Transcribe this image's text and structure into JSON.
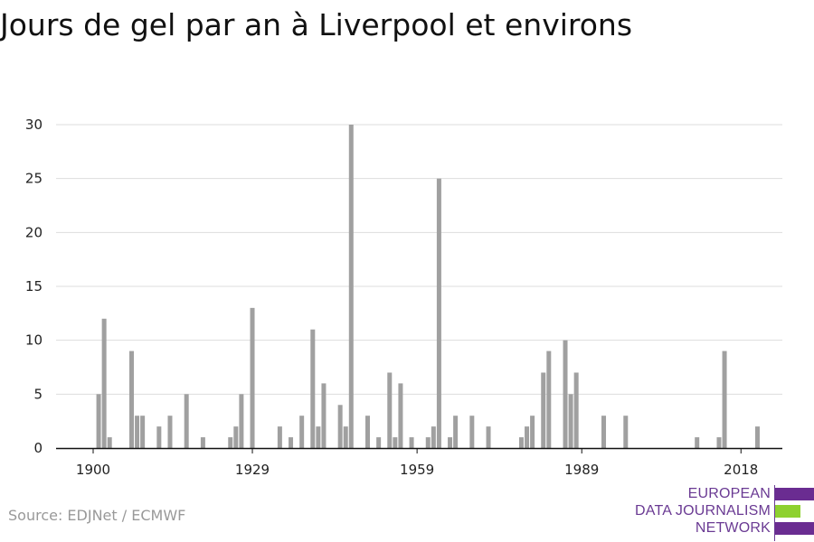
{
  "title": "Jours de gel par an à Liverpool et environs",
  "source": "Source: EDJNet / ECMWF",
  "logo": {
    "line1": "EUROPEAN",
    "line2": "DATA JOURNALISM",
    "line3": "NETWORK"
  },
  "colors": {
    "bar": "#a0a0a0",
    "grid": "#dddddd",
    "axis": "#111111",
    "logo_purple": "#6a2c91",
    "logo_green": "#8ed12f"
  },
  "chart_data": {
    "type": "bar",
    "title": "Jours de gel par an à Liverpool et environs",
    "xlabel": "",
    "ylabel": "",
    "x_ticks": [
      1900,
      1929,
      1959,
      1989,
      2018
    ],
    "y_ticks": [
      0,
      5,
      10,
      15,
      20,
      25,
      30
    ],
    "xlim": [
      1900,
      2022
    ],
    "ylim": [
      0,
      30
    ],
    "grid": true,
    "x": [
      1900,
      1901,
      1902,
      1903,
      1904,
      1905,
      1906,
      1907,
      1908,
      1909,
      1910,
      1911,
      1912,
      1913,
      1914,
      1915,
      1916,
      1917,
      1918,
      1919,
      1920,
      1921,
      1922,
      1923,
      1924,
      1925,
      1926,
      1927,
      1928,
      1929,
      1930,
      1931,
      1932,
      1933,
      1934,
      1935,
      1936,
      1937,
      1938,
      1939,
      1940,
      1941,
      1942,
      1943,
      1944,
      1945,
      1946,
      1947,
      1948,
      1949,
      1950,
      1951,
      1952,
      1953,
      1954,
      1955,
      1956,
      1957,
      1958,
      1959,
      1960,
      1961,
      1962,
      1963,
      1964,
      1965,
      1966,
      1967,
      1968,
      1969,
      1970,
      1971,
      1972,
      1973,
      1974,
      1975,
      1976,
      1977,
      1978,
      1979,
      1980,
      1981,
      1982,
      1983,
      1984,
      1985,
      1986,
      1987,
      1988,
      1989,
      1990,
      1991,
      1992,
      1993,
      1994,
      1995,
      1996,
      1997,
      1998,
      1999,
      2000,
      2001,
      2002,
      2003,
      2004,
      2005,
      2006,
      2007,
      2008,
      2009,
      2010,
      2011,
      2012,
      2013,
      2014,
      2015,
      2016,
      2017,
      2018,
      2019,
      2020,
      2021
    ],
    "values": [
      0,
      5,
      12,
      1,
      0,
      0,
      0,
      9,
      3,
      3,
      0,
      0,
      2,
      0,
      3,
      0,
      0,
      5,
      0,
      0,
      1,
      0,
      0,
      0,
      0,
      1,
      2,
      5,
      0,
      13,
      0,
      0,
      0,
      0,
      2,
      0,
      1,
      0,
      3,
      0,
      11,
      2,
      6,
      0,
      0,
      4,
      2,
      30,
      0,
      0,
      3,
      0,
      1,
      0,
      7,
      1,
      6,
      0,
      1,
      0,
      0,
      1,
      2,
      25,
      0,
      1,
      3,
      0,
      0,
      3,
      0,
      0,
      2,
      0,
      0,
      0,
      0,
      0,
      1,
      2,
      3,
      0,
      7,
      9,
      0,
      0,
      10,
      5,
      7,
      0,
      0,
      0,
      0,
      3,
      0,
      0,
      0,
      3,
      0,
      0,
      0,
      0,
      0,
      0,
      0,
      0,
      0,
      0,
      0,
      0,
      1,
      0,
      0,
      0,
      1,
      9,
      0,
      0,
      0,
      0,
      0,
      2
    ]
  }
}
